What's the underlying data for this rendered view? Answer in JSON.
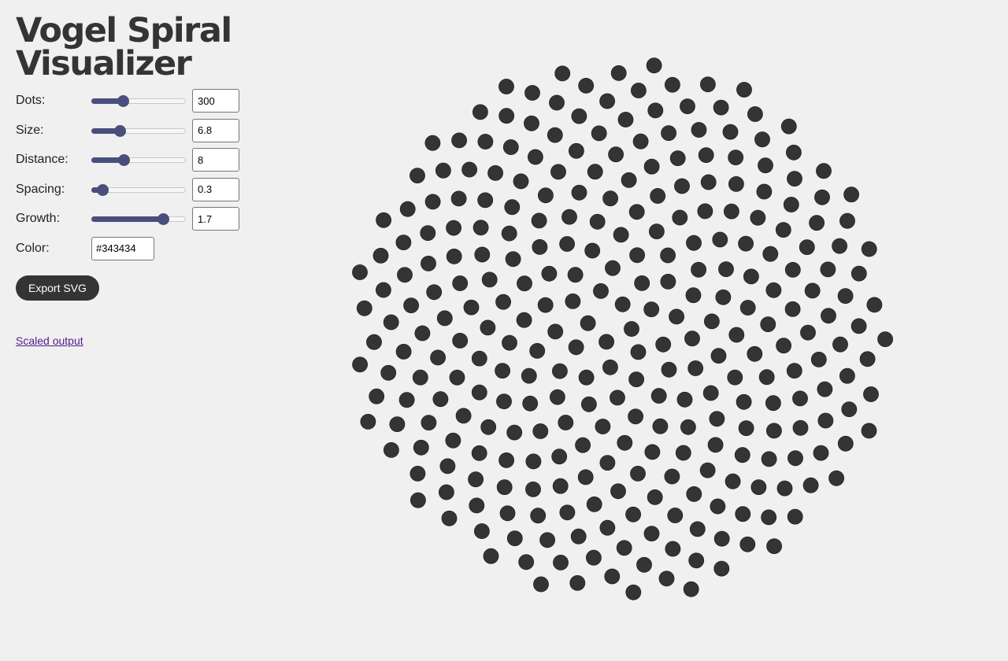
{
  "app": {
    "title": "Vogel Spiral Visualizer"
  },
  "controls": {
    "dots": {
      "label": "Dots:",
      "value": "300",
      "fraction": 0.32
    },
    "size": {
      "label": "Size:",
      "value": "6.8",
      "fraction": 0.28
    },
    "distance": {
      "label": "Distance:",
      "value": "8",
      "fraction": 0.33
    },
    "spacing": {
      "label": "Spacing:",
      "value": "0.3",
      "fraction": 0.07
    },
    "growth": {
      "label": "Growth:",
      "value": "1.7",
      "fraction": 0.81
    },
    "color": {
      "label": "Color:",
      "value": "#343434"
    }
  },
  "actions": {
    "export_label": "Export SVG",
    "scaled_link_label": "Scaled output"
  },
  "colors": {
    "dot": "#343434",
    "accent": "#484f7d",
    "background": "#f0f0f0"
  }
}
